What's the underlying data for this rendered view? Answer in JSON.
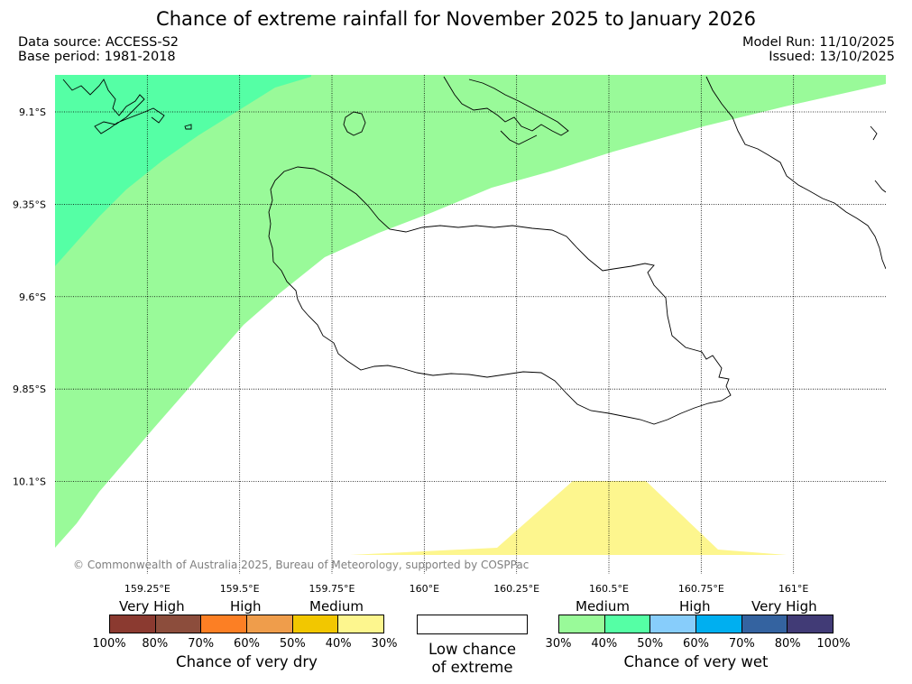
{
  "title": "Chance of extreme rainfall for November 2025 to January 2026",
  "data_source": "Data source: ACCESS-S2",
  "base_period": "Base period: 1981-2018",
  "model_run": "Model Run: 11/10/2025",
  "issued": "Issued: 13/10/2025",
  "copyright": "© Commonwealth of Australia 2025, Bureau of Meteorology, supported by COSPPac",
  "map": {
    "lon_range": [
      159.0,
      161.25
    ],
    "lat_range": [
      -9.0,
      -10.35
    ],
    "lon_ticks": [
      {
        "value": 159.25,
        "label": "159.25°E"
      },
      {
        "value": 159.5,
        "label": "159.5°E"
      },
      {
        "value": 159.75,
        "label": "159.75°E"
      },
      {
        "value": 160.0,
        "label": "160°E"
      },
      {
        "value": 160.25,
        "label": "160.25°E"
      },
      {
        "value": 160.5,
        "label": "160.5°E"
      },
      {
        "value": 160.75,
        "label": "160.75°E"
      },
      {
        "value": 161.0,
        "label": "161°E"
      }
    ],
    "lat_ticks": [
      {
        "value": -9.1,
        "label": "9.1°S"
      },
      {
        "value": -9.35,
        "label": "9.35°S"
      },
      {
        "value": -9.6,
        "label": "9.6°S"
      },
      {
        "value": -9.85,
        "label": "9.85°S"
      },
      {
        "value": -10.1,
        "label": "10.1°S"
      }
    ],
    "colors": {
      "wet_medium_light": "#99fa99",
      "wet_medium_dark": "#55ffa5",
      "dry_low": "#fdf68e",
      "coast": "#000000",
      "grid": "#000000"
    }
  },
  "dry_legend": {
    "groups": [
      "Very High",
      "High",
      "Medium"
    ],
    "colors": [
      "#8b3a30",
      "#8c4d3c",
      "#fc7f24",
      "#ef9d4b",
      "#f2c700",
      "#fdf68e"
    ],
    "ticks": [
      "100%",
      "80%",
      "70%",
      "60%",
      "50%",
      "40%",
      "30%"
    ],
    "label": "Chance of very dry"
  },
  "neutral_legend": {
    "line1": "Low chance",
    "line2": "of extreme",
    "color": "#ffffff"
  },
  "wet_legend": {
    "groups": [
      "Medium",
      "High",
      "Very High"
    ],
    "colors": [
      "#99fa99",
      "#55ffa5",
      "#87cdfb",
      "#00aff0",
      "#3463a0",
      "#413b76"
    ],
    "ticks": [
      "30%",
      "40%",
      "50%",
      "60%",
      "70%",
      "80%",
      "100%"
    ],
    "label": "Chance of very wet"
  }
}
